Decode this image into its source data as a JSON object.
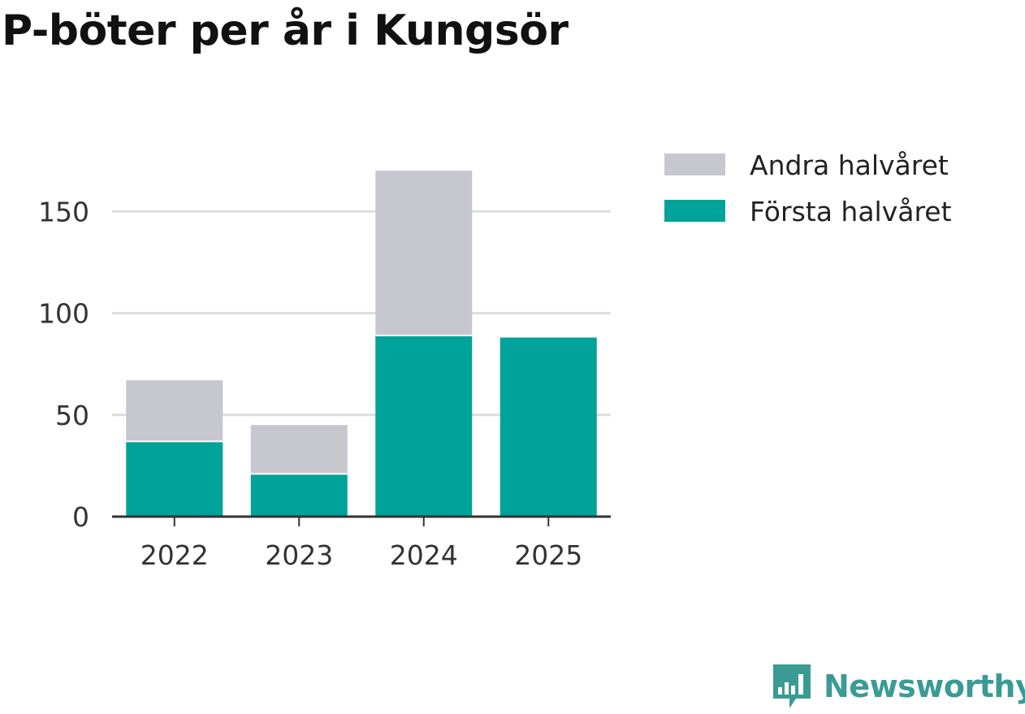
{
  "chart_data": {
    "type": "bar",
    "stacked": true,
    "title": "P-böter per år i Kungsör",
    "categories": [
      "2022",
      "2023",
      "2024",
      "2025"
    ],
    "series": [
      {
        "name": "Första halvåret",
        "color": "#00a39a",
        "values": [
          37,
          21,
          89,
          88
        ]
      },
      {
        "name": "Andra halvåret",
        "color": "#c7c7cf",
        "values": [
          30,
          24,
          81,
          0
        ]
      }
    ],
    "legend_order": [
      "Andra halvåret",
      "Första halvåret"
    ],
    "yticks": [
      0,
      50,
      100,
      150
    ],
    "ylim": [
      0,
      170
    ],
    "xlabel": "",
    "ylabel": "",
    "grid": true,
    "legend_position": "top-right"
  },
  "branding": {
    "logo_text": "Newsworthy",
    "logo_color": "#3a9b95"
  }
}
